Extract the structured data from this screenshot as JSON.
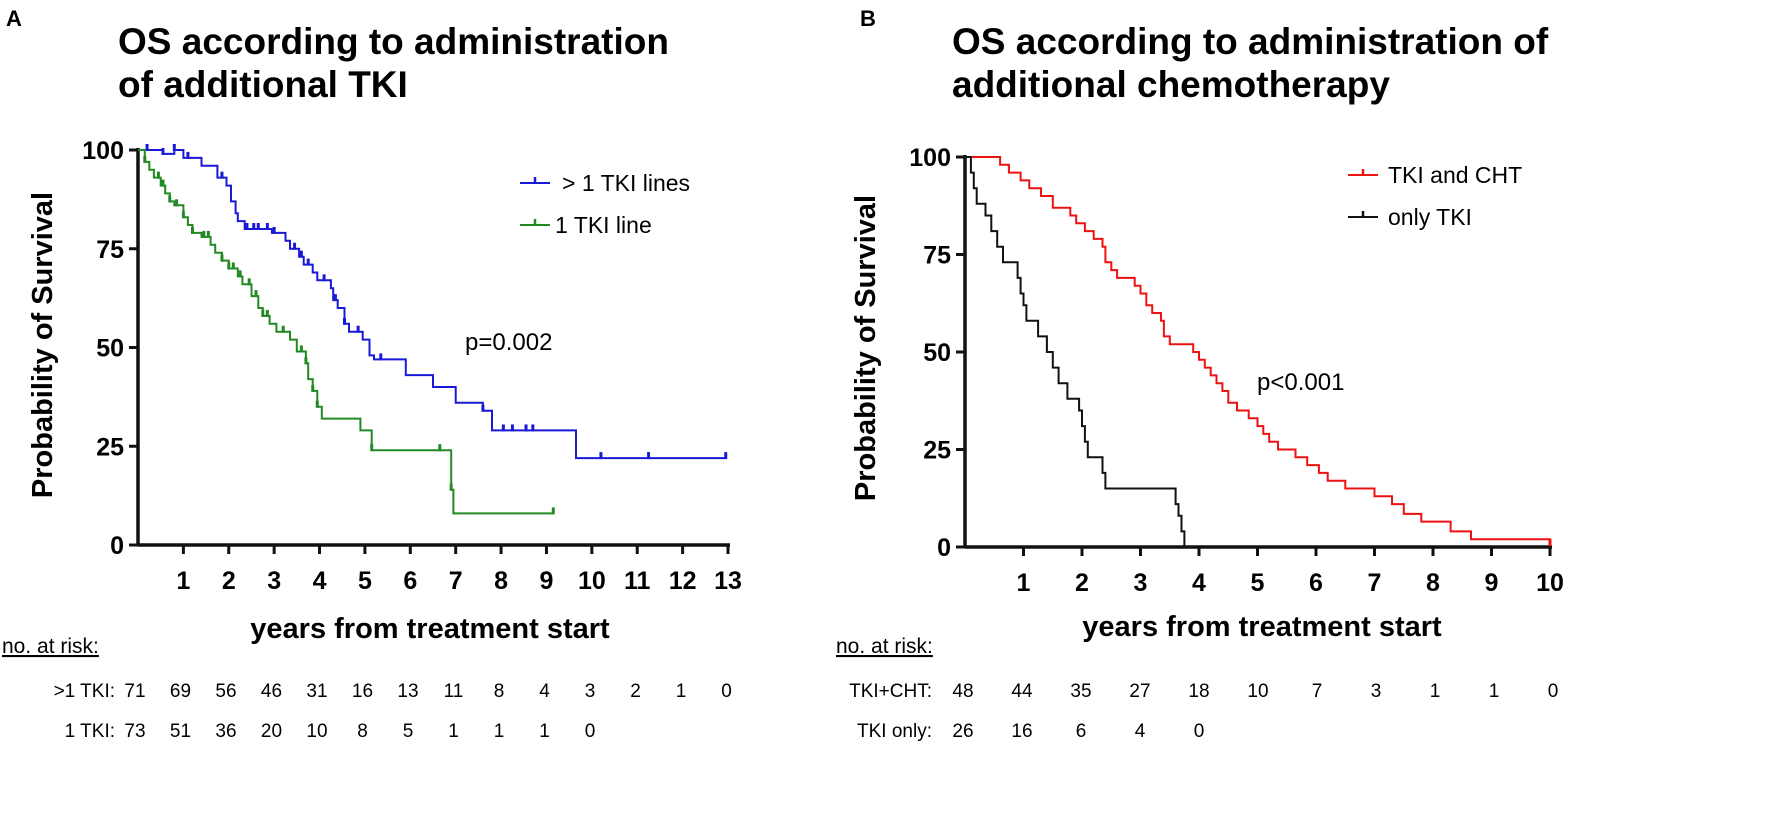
{
  "chart_data": [
    {
      "type": "line",
      "panel_label": "A",
      "title_lines": [
        "OS according to administration",
        "of additional TKI"
      ],
      "xlabel": "years from treatment start",
      "ylabel": "Probability of Survival",
      "xlim": [
        0,
        13
      ],
      "ylim": [
        0,
        100
      ],
      "x_ticks": [
        "1",
        "2",
        "3",
        "4",
        "5",
        "6",
        "7",
        "8",
        "9",
        "10",
        "11",
        "12",
        "13"
      ],
      "y_ticks": [
        "0",
        "25",
        "50",
        "75",
        "100"
      ],
      "p_value": "p=0.002",
      "legend_position": "top-right",
      "series": [
        {
          "name": "> 1 TKI lines",
          "color": "#1a1ad6",
          "steps": [
            [
              0,
              100
            ],
            [
              0.55,
              99
            ],
            [
              0.8,
              100
            ],
            [
              1.0,
              98
            ],
            [
              1.4,
              96
            ],
            [
              1.75,
              93
            ],
            [
              1.95,
              91
            ],
            [
              2.05,
              87
            ],
            [
              2.15,
              84
            ],
            [
              2.2,
              82
            ],
            [
              2.35,
              80
            ],
            [
              2.65,
              80
            ],
            [
              2.95,
              79
            ],
            [
              3.25,
              77
            ],
            [
              3.35,
              75
            ],
            [
              3.55,
              73
            ],
            [
              3.65,
              71
            ],
            [
              3.85,
              69
            ],
            [
              3.95,
              67
            ],
            [
              4.15,
              67
            ],
            [
              4.25,
              65
            ],
            [
              4.3,
              62
            ],
            [
              4.4,
              60
            ],
            [
              4.55,
              56
            ],
            [
              4.65,
              54
            ],
            [
              4.95,
              52
            ],
            [
              5.1,
              48
            ],
            [
              5.2,
              47
            ],
            [
              5.7,
              47
            ],
            [
              5.9,
              43
            ],
            [
              6.5,
              40
            ],
            [
              7.0,
              36
            ],
            [
              7.6,
              34
            ],
            [
              7.8,
              29
            ],
            [
              9.6,
              29
            ],
            [
              9.65,
              22
            ],
            [
              12.95,
              22
            ]
          ],
          "censor_x": [
            0.2,
            0.55,
            0.8,
            1.1,
            1.85,
            2.4,
            2.55,
            2.65,
            2.85,
            3.0,
            3.45,
            3.6,
            3.75,
            4.1,
            4.35,
            4.55,
            4.85,
            5.35,
            7.6,
            8.05,
            8.25,
            8.55,
            8.7,
            10.2,
            11.25,
            12.95
          ]
        },
        {
          "name": "1 TKI line",
          "color": "#238a23",
          "steps": [
            [
              0,
              100
            ],
            [
              0.15,
              97
            ],
            [
              0.25,
              95
            ],
            [
              0.35,
              93
            ],
            [
              0.5,
              91
            ],
            [
              0.6,
              89
            ],
            [
              0.7,
              87
            ],
            [
              0.8,
              86
            ],
            [
              1.0,
              83
            ],
            [
              1.1,
              81
            ],
            [
              1.2,
              79
            ],
            [
              1.4,
              78
            ],
            [
              1.6,
              76
            ],
            [
              1.7,
              74
            ],
            [
              1.85,
              72
            ],
            [
              2.0,
              70
            ],
            [
              2.2,
              68
            ],
            [
              2.3,
              66
            ],
            [
              2.5,
              63
            ],
            [
              2.65,
              60
            ],
            [
              2.75,
              58
            ],
            [
              2.9,
              56
            ],
            [
              3.05,
              54
            ],
            [
              3.35,
              52
            ],
            [
              3.5,
              49
            ],
            [
              3.7,
              46
            ],
            [
              3.75,
              42
            ],
            [
              3.85,
              39
            ],
            [
              3.95,
              35
            ],
            [
              4.05,
              32
            ],
            [
              4.9,
              29
            ],
            [
              5.15,
              24
            ],
            [
              6.85,
              24
            ],
            [
              6.9,
              14
            ],
            [
              6.95,
              8
            ],
            [
              9.15,
              8
            ]
          ],
          "censor_x": [
            0.15,
            0.45,
            0.55,
            0.7,
            0.85,
            1.0,
            1.2,
            1.45,
            1.55,
            1.85,
            2.0,
            2.1,
            2.25,
            2.45,
            2.6,
            2.75,
            2.85,
            3.2,
            3.6,
            3.7,
            3.85,
            3.95,
            5.15,
            6.65,
            6.9,
            9.15
          ]
        }
      ],
      "risk_table": {
        "title": "no. at risk:",
        "rows": [
          {
            "label": ">1 TKI:",
            "values": [
              "71",
              "69",
              "56",
              "46",
              "31",
              "16",
              "13",
              "11",
              "8",
              "4",
              "3",
              "2",
              "1",
              "0"
            ]
          },
          {
            "label": "1 TKI:",
            "values": [
              "73",
              "51",
              "36",
              "20",
              "10",
              "8",
              "5",
              "1",
              "1",
              "1",
              "0"
            ]
          }
        ]
      }
    },
    {
      "type": "line",
      "panel_label": "B",
      "title_lines": [
        "OS according to administration of",
        "additional chemotherapy"
      ],
      "xlabel": "years from treatment start",
      "ylabel": "Probability of Survival",
      "xlim": [
        0,
        10
      ],
      "ylim": [
        0,
        100
      ],
      "x_ticks": [
        "1",
        "2",
        "3",
        "4",
        "5",
        "6",
        "7",
        "8",
        "9",
        "10"
      ],
      "y_ticks": [
        "0",
        "25",
        "50",
        "75",
        "100"
      ],
      "p_value": "p<0.001",
      "legend_position": "top-right",
      "series": [
        {
          "name": "TKI and CHT",
          "color": "#ee1111",
          "steps": [
            [
              0,
              100
            ],
            [
              0.6,
              98
            ],
            [
              0.75,
              96
            ],
            [
              0.95,
              94
            ],
            [
              1.1,
              92
            ],
            [
              1.3,
              90
            ],
            [
              1.5,
              87
            ],
            [
              1.8,
              85
            ],
            [
              1.9,
              83
            ],
            [
              2.05,
              81
            ],
            [
              2.2,
              79
            ],
            [
              2.35,
              77
            ],
            [
              2.4,
              73
            ],
            [
              2.5,
              71
            ],
            [
              2.6,
              69
            ],
            [
              2.9,
              67
            ],
            [
              3.0,
              65
            ],
            [
              3.1,
              62
            ],
            [
              3.2,
              60
            ],
            [
              3.35,
              58
            ],
            [
              3.4,
              54
            ],
            [
              3.5,
              52
            ],
            [
              3.9,
              50
            ],
            [
              4.0,
              48
            ],
            [
              4.1,
              46
            ],
            [
              4.2,
              44
            ],
            [
              4.3,
              42
            ],
            [
              4.4,
              40
            ],
            [
              4.5,
              37
            ],
            [
              4.65,
              35
            ],
            [
              4.85,
              33
            ],
            [
              5.0,
              31
            ],
            [
              5.1,
              29
            ],
            [
              5.2,
              27
            ],
            [
              5.35,
              25
            ],
            [
              5.65,
              23
            ],
            [
              5.85,
              21
            ],
            [
              6.05,
              19
            ],
            [
              6.2,
              17
            ],
            [
              6.5,
              15
            ],
            [
              7.0,
              13
            ],
            [
              7.3,
              11
            ],
            [
              7.5,
              8.5
            ],
            [
              7.8,
              6.5
            ],
            [
              8.3,
              4
            ],
            [
              8.65,
              2
            ],
            [
              10.0,
              0.5
            ]
          ],
          "censor_x": [
            10.0
          ]
        },
        {
          "name": "only TKI",
          "color": "#111111",
          "steps": [
            [
              0,
              100
            ],
            [
              0.1,
              96
            ],
            [
              0.15,
              92
            ],
            [
              0.2,
              88
            ],
            [
              0.35,
              85
            ],
            [
              0.45,
              81
            ],
            [
              0.55,
              77
            ],
            [
              0.65,
              73
            ],
            [
              0.9,
              69
            ],
            [
              0.95,
              65
            ],
            [
              1.0,
              62
            ],
            [
              1.05,
              58
            ],
            [
              1.25,
              54
            ],
            [
              1.4,
              50
            ],
            [
              1.5,
              46
            ],
            [
              1.6,
              42
            ],
            [
              1.75,
              38
            ],
            [
              1.95,
              35
            ],
            [
              2.0,
              31
            ],
            [
              2.05,
              27
            ],
            [
              2.1,
              23
            ],
            [
              2.35,
              19
            ],
            [
              2.4,
              15
            ],
            [
              3.55,
              15
            ],
            [
              3.6,
              11
            ],
            [
              3.65,
              8
            ],
            [
              3.7,
              4
            ],
            [
              3.75,
              0
            ]
          ],
          "censor_x": []
        }
      ],
      "risk_table": {
        "title": "no. at risk:",
        "rows": [
          {
            "label": "TKI+CHT:",
            "values": [
              "48",
              "44",
              "35",
              "27",
              "18",
              "10",
              "7",
              "3",
              "1",
              "1",
              "0"
            ]
          },
          {
            "label": "TKI only:",
            "values": [
              "26",
              "16",
              "6",
              "4",
              "0"
            ]
          }
        ]
      }
    }
  ]
}
